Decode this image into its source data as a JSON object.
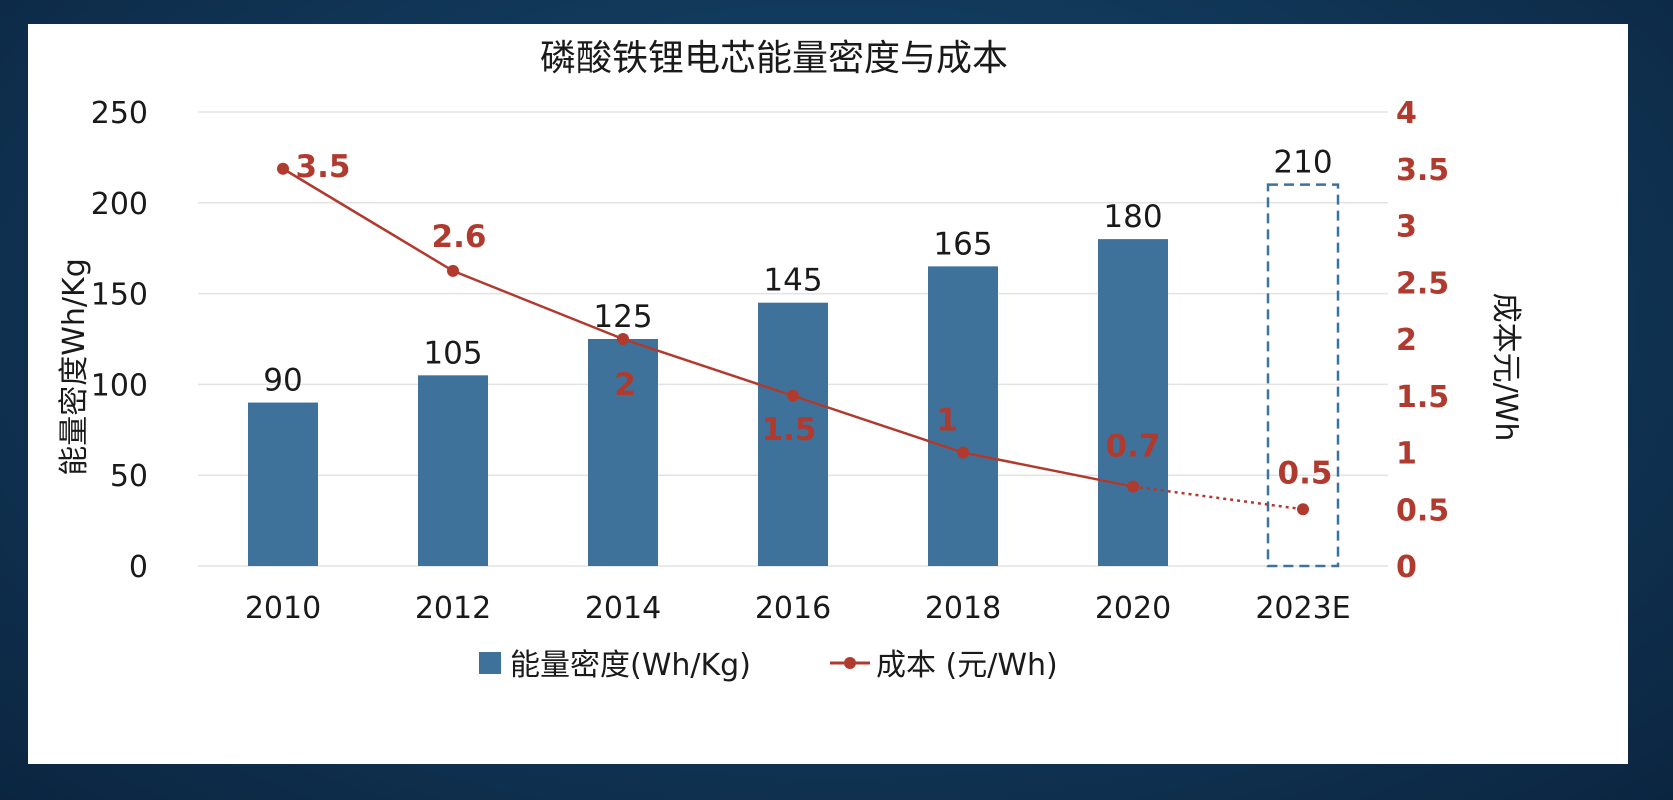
{
  "chart_data": {
    "type": "bar",
    "title": "磷酸铁锂电芯能量密度与成本",
    "categories": [
      "2010",
      "2012",
      "2014",
      "2016",
      "2018",
      "2020",
      "2023E"
    ],
    "series": [
      {
        "name": "能量密度(Wh/Kg)",
        "type": "bar",
        "axis": "left",
        "values": [
          90,
          105,
          125,
          145,
          165,
          180,
          210
        ],
        "labels": [
          "90",
          "105",
          "125",
          "145",
          "165",
          "180",
          "210"
        ],
        "estimated_last": true
      },
      {
        "name": "成本 (元/Wh)",
        "type": "line",
        "axis": "right",
        "values": [
          3.5,
          2.6,
          2,
          1.5,
          1,
          0.7,
          0.5
        ],
        "labels": [
          "3.5",
          "2.6",
          "2",
          "1.5",
          "1",
          "0.7",
          "0.5"
        ],
        "estimated_last": true
      }
    ],
    "ylabel": "能量密度Wh/Kg",
    "y2label": "成本元/Wh",
    "ylim": [
      0,
      250
    ],
    "y2lim": [
      0,
      4
    ],
    "yticks": [
      "0",
      "50",
      "100",
      "150",
      "200",
      "250"
    ],
    "y2ticks": [
      "0",
      "0.5",
      "1",
      "1.5",
      "2",
      "2.5",
      "3",
      "3.5",
      "4"
    ],
    "grid": true,
    "legend_position": "bottom",
    "colors": {
      "bar": "#3f729b",
      "line": "#b03a2e",
      "estimate_outline": "#3f729b"
    }
  }
}
